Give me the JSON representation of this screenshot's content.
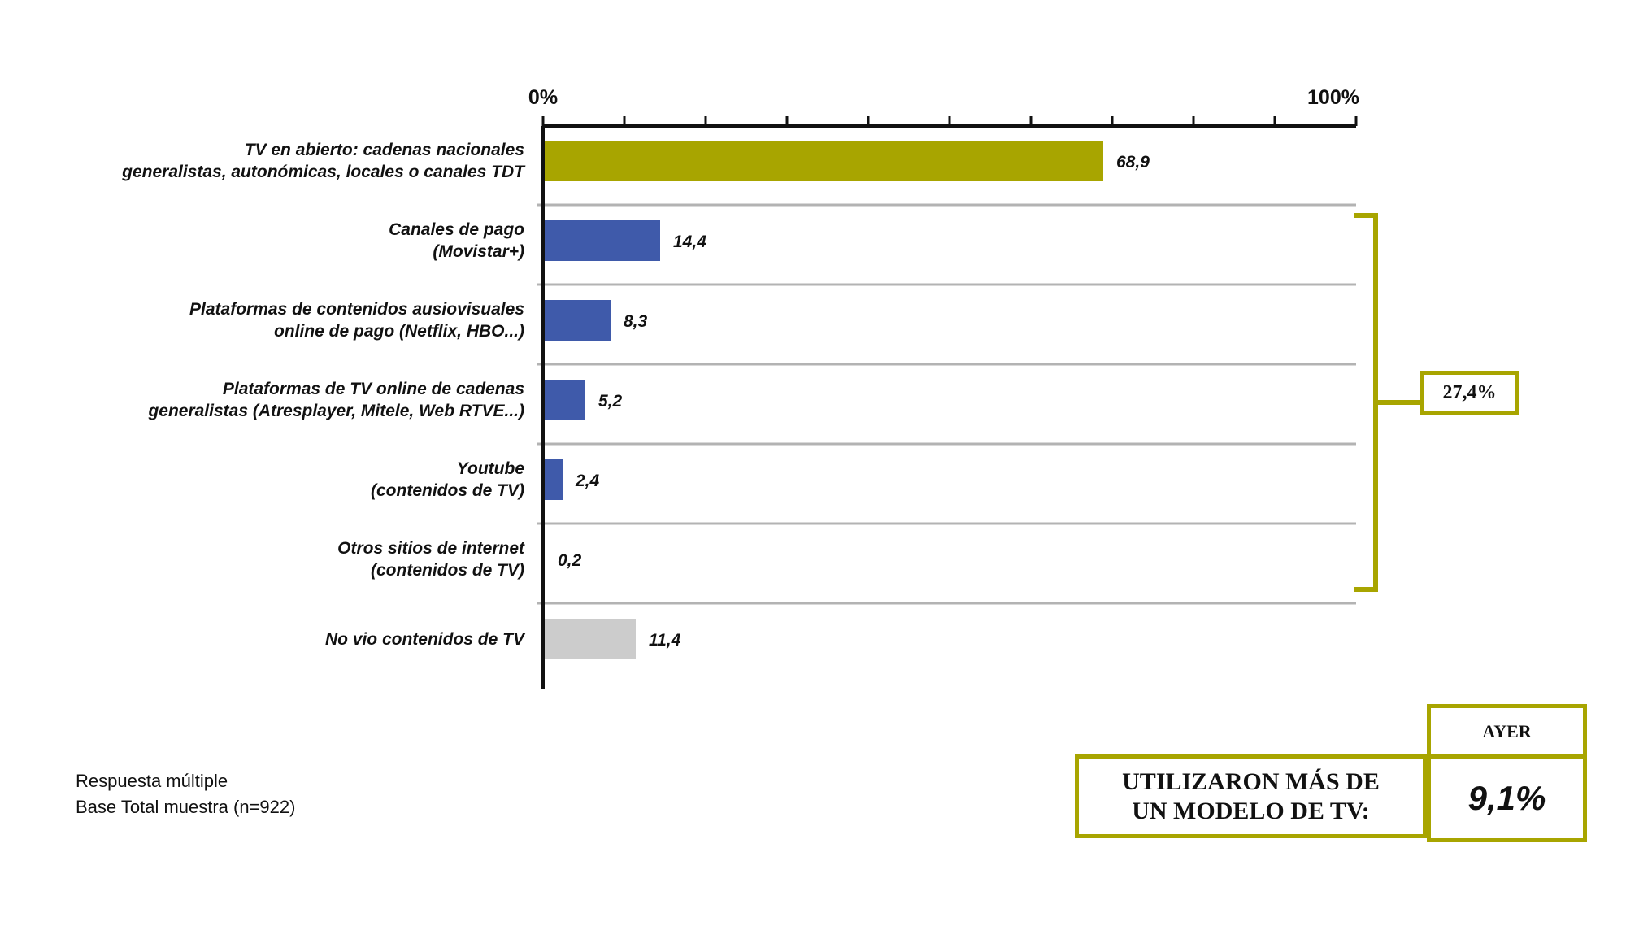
{
  "chart_data": {
    "type": "bar",
    "orientation": "horizontal",
    "categories": [
      [
        "TV en abierto: cadenas nacionales",
        "generalistas, autonómicas, locales o canales TDT"
      ],
      [
        "Canales de pago",
        "(Movistar+)"
      ],
      [
        "Plataformas de contenidos ausiovisuales",
        "online de pago (Netflix, HBO...)"
      ],
      [
        "Plataformas de TV online de cadenas",
        "generalistas (Atresplayer, Mitele, Web RTVE...)"
      ],
      [
        "Youtube",
        "(contenidos de TV)"
      ],
      [
        "Otros sitios de internet",
        "(contenidos de TV)"
      ],
      [
        "No vio contenidos de TV"
      ]
    ],
    "values": [
      68.9,
      14.4,
      8.3,
      5.2,
      2.4,
      0.2,
      11.4
    ],
    "value_labels": [
      "68,9",
      "14,4",
      "8,3",
      "5,2",
      "2,4",
      "0,2",
      "11,4"
    ],
    "bar_colors": [
      "#a8a500",
      "#3f5aaa",
      "#3f5aaa",
      "#3f5aaa",
      "#3f5aaa",
      "#3f5aaa",
      "#cccccc"
    ],
    "x_tick_labels": [
      "0%",
      "100%"
    ],
    "xlim": [
      0,
      100
    ],
    "x_tick_count": 10,
    "grid": true,
    "bracket": {
      "label": "27,4%",
      "spans_categories": [
        1,
        6
      ]
    }
  },
  "colors": {
    "accent_olive": "#a8a500",
    "bar_blue": "#3f5aaa",
    "bar_gray": "#cccccc",
    "separator": "#b3b3b3",
    "axis": "#111111"
  },
  "footnote": {
    "line1": "Respuesta múltiple",
    "line2": "Base Total muestra (n=922)"
  },
  "summary": {
    "label_line1": "UTILIZARON MÁS DE",
    "label_line2": "UN MODELO DE TV:",
    "column_header": "AYER",
    "value": "9,1%"
  }
}
